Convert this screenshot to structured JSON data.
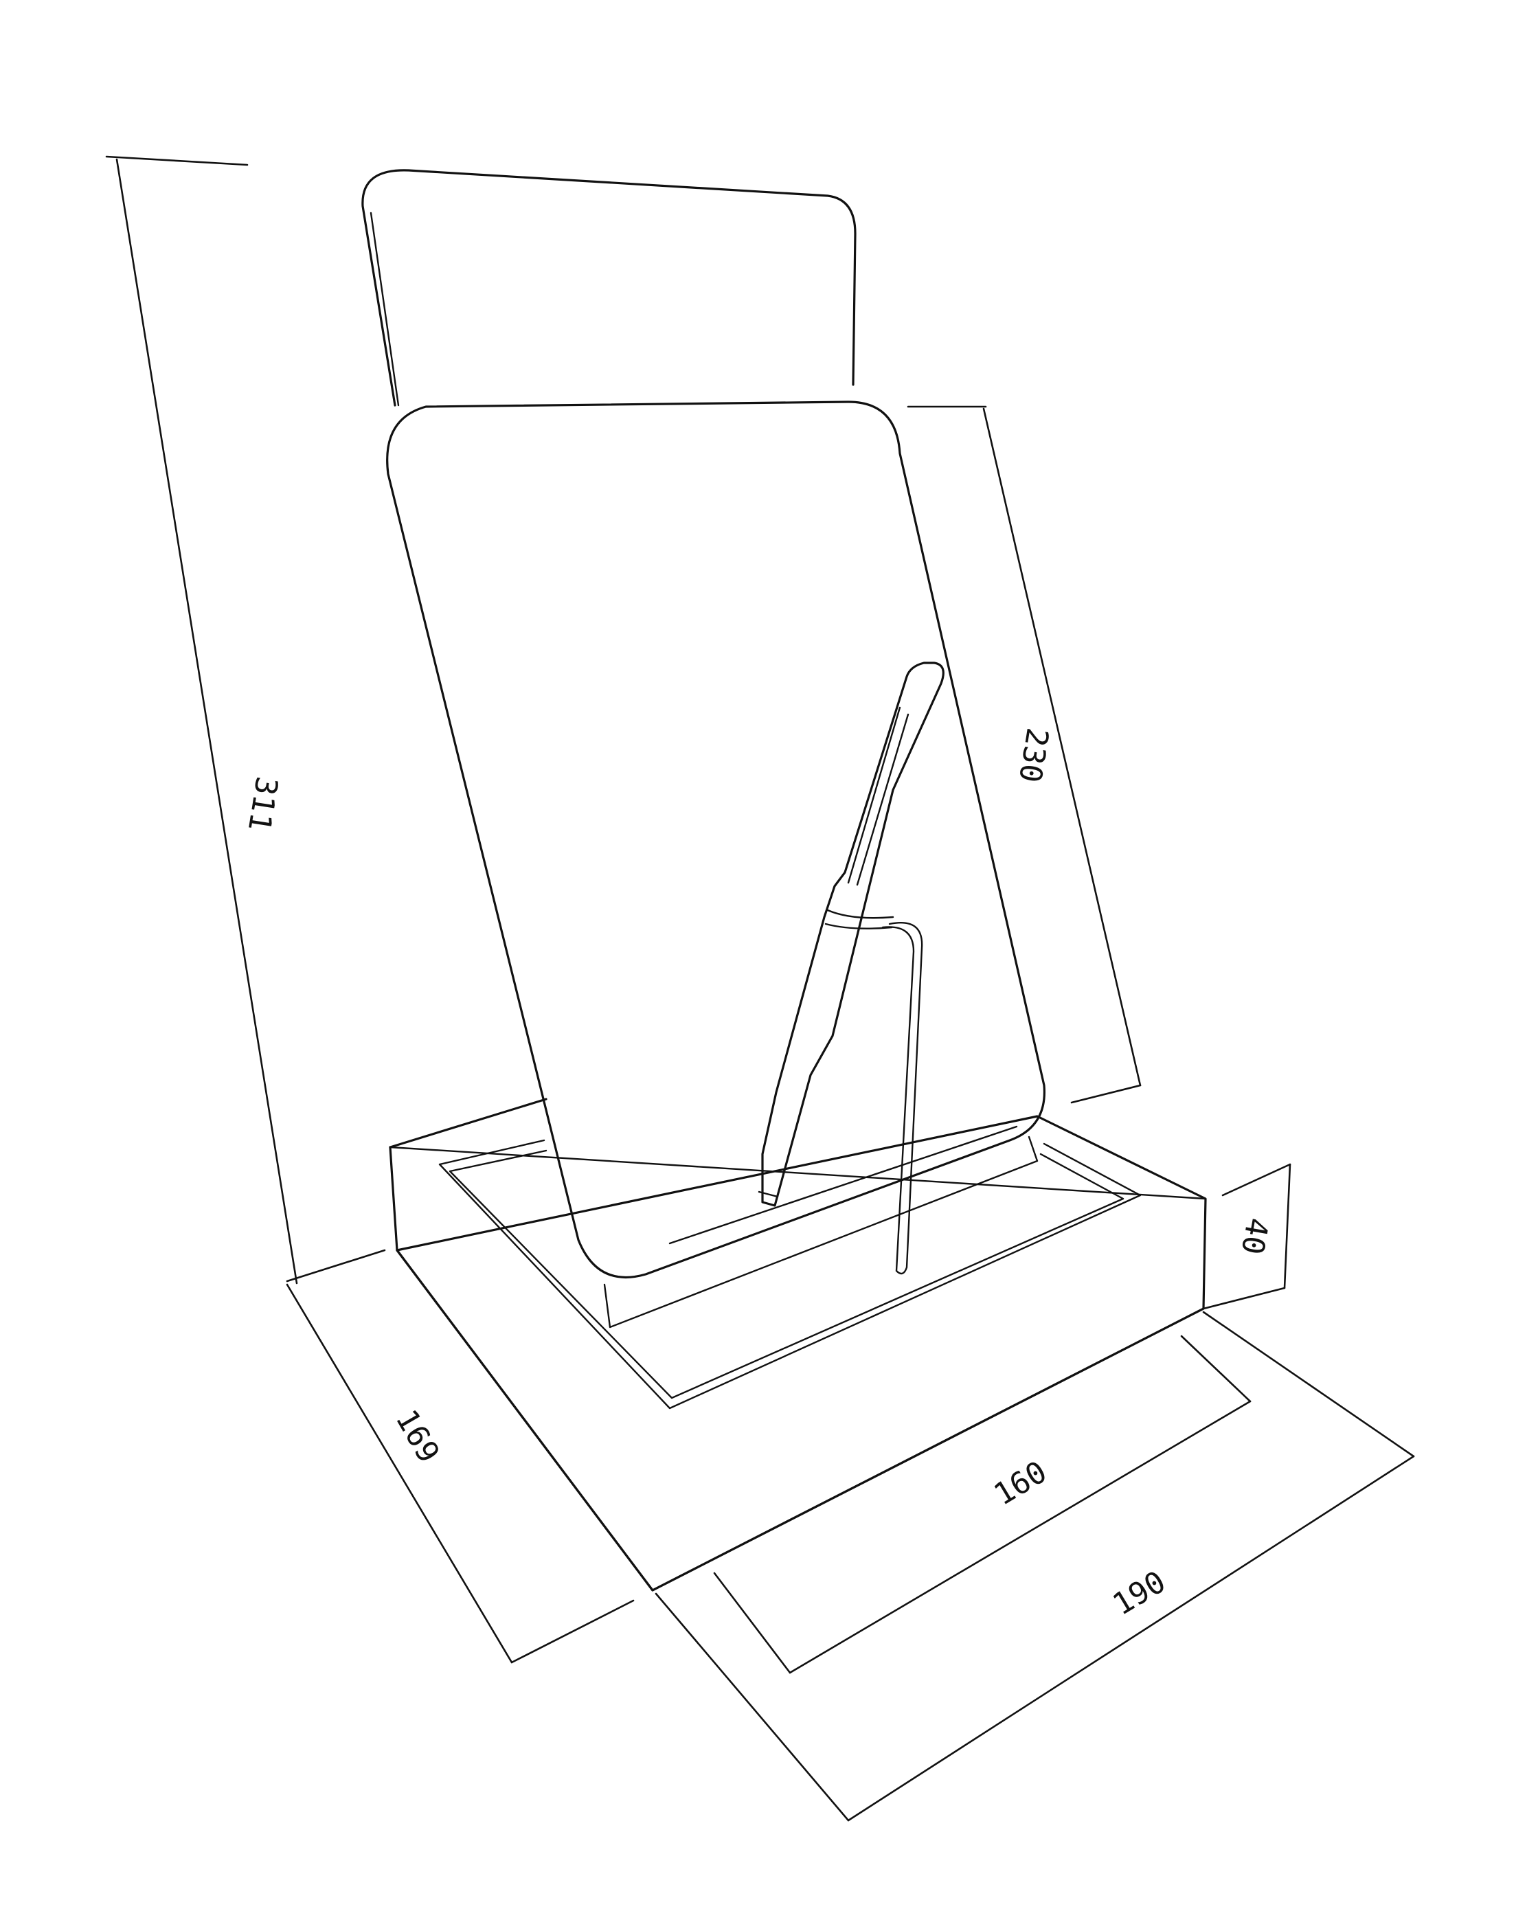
{
  "dimensions": {
    "total_height": "311",
    "panel_height": "230",
    "base_height": "40",
    "base_depth": "169",
    "inner_width": "160",
    "base_width": "190"
  },
  "colors": {
    "line": "#111111",
    "background": "#ffffff"
  }
}
